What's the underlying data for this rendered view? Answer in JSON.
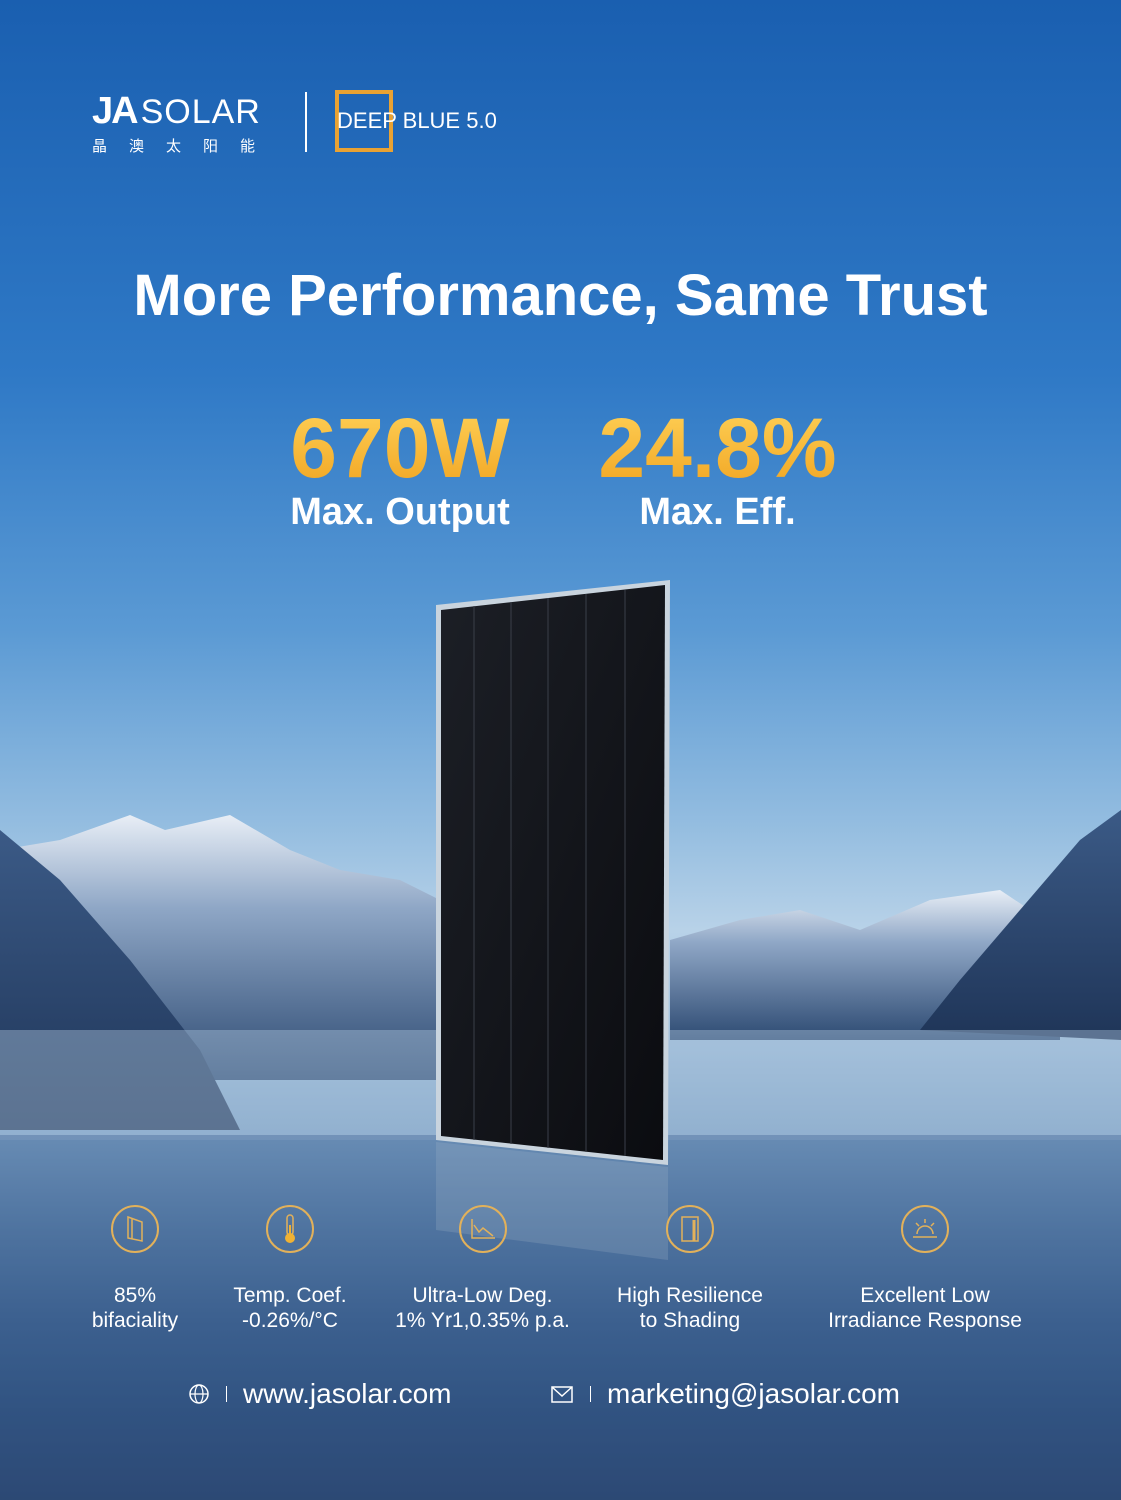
{
  "brand": {
    "logo_text": "JA SOLAR",
    "logo_cn": "晶澳太阳能",
    "product": "DEEP BLUE 5.0",
    "accent": "#f0a21f"
  },
  "headline": "More Performance, Same Trust",
  "stats": [
    {
      "value": "670W",
      "label": "Max. Output"
    },
    {
      "value": "24.8%",
      "label": "Max. Eff."
    }
  ],
  "features": [
    {
      "icon": "bifacial-panel-icon",
      "line1": "85%",
      "line2": "bifaciality"
    },
    {
      "icon": "thermometer-icon",
      "line1": "Temp. Coef.",
      "line2": "-0.26%/°C"
    },
    {
      "icon": "declining-chart-icon",
      "line1": "Ultra-Low Deg.",
      "line2": "1% Yr1,0.35% p.a."
    },
    {
      "icon": "shaded-panel-icon",
      "line1": "High Resilience",
      "line2": "to Shading"
    },
    {
      "icon": "low-sun-icon",
      "line1": "Excellent Low",
      "line2": "Irradiance Response"
    }
  ],
  "contact": {
    "website": "www.jasolar.com",
    "email": "marketing@jasolar.com"
  }
}
